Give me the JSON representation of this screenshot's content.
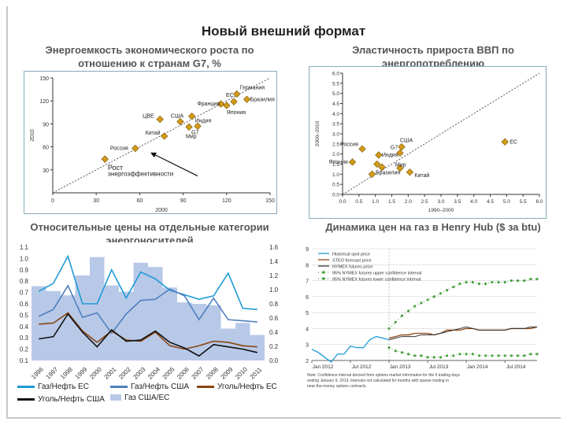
{
  "page": {
    "title": "Новый внешний формат"
  },
  "colors": {
    "accent_blue": "#1e9ad6",
    "brown": "#8b4513",
    "bar_fill": "#b8c9e8",
    "diamond": "#d29c1a",
    "diamond_edge": "#7a5200"
  },
  "chart_data": [
    {
      "id": "energy-intensity",
      "type": "scatter",
      "title": "Энергоемкость экономического роста по отношению к странам G7, %",
      "xlabel": "2000",
      "ylabel": "2010",
      "xlim": [
        0,
        150
      ],
      "ylim": [
        0,
        150
      ],
      "xticks": [
        0,
        30,
        60,
        90,
        120,
        150
      ],
      "yticks": [
        30,
        60,
        90,
        120,
        150
      ],
      "diagonal": true,
      "arrow_label": [
        "Рост",
        "энергоэффективности"
      ],
      "points": [
        {
          "label": "Германия",
          "x": 127,
          "y": 129
        },
        {
          "label": "Бразилия",
          "x": 134,
          "y": 122
        },
        {
          "label": "ЕС",
          "x": 125,
          "y": 119
        },
        {
          "label": "Франция",
          "x": 116,
          "y": 116
        },
        {
          "label": "Япония",
          "x": 120,
          "y": 114
        },
        {
          "label": "Индия",
          "x": 96,
          "y": 100
        },
        {
          "label": "ЦВЕ",
          "x": 74,
          "y": 96
        },
        {
          "label": "США",
          "x": 88,
          "y": 93
        },
        {
          "label": "G7",
          "x": 100,
          "y": 87
        },
        {
          "label": "Мир",
          "x": 94,
          "y": 86
        },
        {
          "label": "Китай",
          "x": 77,
          "y": 74
        },
        {
          "label": "Россия",
          "x": 57,
          "y": 58
        },
        {
          "label": "",
          "x": 36,
          "y": 44
        }
      ]
    },
    {
      "id": "gdp-elasticity",
      "type": "scatter",
      "title": "Эластичность прироста ВВП по энергопотреблению",
      "xlabel": "1990–2000",
      "ylabel": "2000–2010",
      "xlim": [
        0,
        6
      ],
      "ylim": [
        0,
        6
      ],
      "xticks": [
        0.0,
        0.5,
        1.0,
        1.5,
        2.0,
        2.5,
        3.0,
        3.5,
        4.0,
        4.5,
        5.0,
        5.5,
        6.0
      ],
      "yticks": [
        0.0,
        0.5,
        1.0,
        1.5,
        2.0,
        2.5,
        3.0,
        3.5,
        4.0,
        4.5,
        5.0,
        5.5,
        6.0
      ],
      "diagonal": true,
      "points": [
        {
          "label": "ЕС",
          "x": 4.95,
          "y": 2.6
        },
        {
          "label": "США",
          "x": 1.8,
          "y": 2.35
        },
        {
          "label": "Россия",
          "x": 0.6,
          "y": 2.25
        },
        {
          "label": "G7",
          "x": 1.75,
          "y": 2.05
        },
        {
          "label": "Индия",
          "x": 1.1,
          "y": 1.95
        },
        {
          "label": "Япония",
          "x": 0.3,
          "y": 1.6
        },
        {
          "label": "",
          "x": 1.05,
          "y": 1.5
        },
        {
          "label": "Бразилия",
          "x": 1.2,
          "y": 1.35
        },
        {
          "label": "Мир",
          "x": 1.75,
          "y": 1.3
        },
        {
          "label": "Китай",
          "x": 2.05,
          "y": 1.1
        },
        {
          "label": "",
          "x": 0.9,
          "y": 1.0
        }
      ]
    },
    {
      "id": "relative-prices",
      "type": "bar+line",
      "title": "Относительные цены на отдельные категории энергоносителей",
      "categories": [
        "1996",
        "1997",
        "1998",
        "1999",
        "2000",
        "2001",
        "2002",
        "2003",
        "2004",
        "2005",
        "2006",
        "2007",
        "2008",
        "2009",
        "2010",
        "2011"
      ],
      "ylim_left": [
        0.1,
        1.1
      ],
      "yticks_left": [
        "0.1",
        "0.2",
        "0.3",
        "0.4",
        "0.5",
        "0.6",
        "0.7",
        "0.8",
        "0.9",
        "1.0",
        "1.1"
      ],
      "ylim_right": [
        0,
        1.6
      ],
      "yticks_right": [
        "0.0",
        "0.2",
        "0.4",
        "0.6",
        "0.8",
        "1.0",
        "1.2",
        "1.4",
        "1.6"
      ],
      "series": [
        {
          "name": "Газ США/ЕС",
          "axis": "right",
          "kind": "bar",
          "values": [
            1.05,
            0.98,
            0.92,
            1.2,
            1.46,
            1.06,
            0.97,
            1.38,
            1.32,
            1.03,
            0.82,
            0.8,
            0.78,
            0.45,
            0.53,
            0.36
          ]
        },
        {
          "name": "Газ/Нефть ЕС",
          "axis": "left",
          "kind": "line",
          "values": [
            0.71,
            0.78,
            1.02,
            0.6,
            0.6,
            0.9,
            0.65,
            0.88,
            0.82,
            0.72,
            0.68,
            0.64,
            0.67,
            0.87,
            0.56,
            0.55
          ]
        },
        {
          "name": "Газ/Нефть США",
          "axis": "left",
          "kind": "line",
          "values": [
            0.49,
            0.55,
            0.76,
            0.48,
            0.52,
            0.34,
            0.51,
            0.63,
            0.64,
            0.73,
            0.67,
            0.46,
            0.65,
            0.46,
            0.45,
            0.44
          ]
        },
        {
          "name": "Уголь/Нефть ЕС",
          "axis": "left",
          "kind": "line",
          "values": [
            0.42,
            0.43,
            0.52,
            0.36,
            0.26,
            0.36,
            0.28,
            0.27,
            0.35,
            0.23,
            0.2,
            0.23,
            0.27,
            0.26,
            0.23,
            0.22
          ]
        },
        {
          "name": "Уголь/Нефть США",
          "axis": "left",
          "kind": "line",
          "values": [
            0.29,
            0.31,
            0.51,
            0.35,
            0.22,
            0.37,
            0.27,
            0.28,
            0.36,
            0.26,
            0.21,
            0.14,
            0.24,
            0.22,
            0.2,
            0.17
          ]
        }
      ]
    },
    {
      "id": "henry-hub",
      "type": "line",
      "title": "Динамика цен на газ в Henry Hub ($ за btu)",
      "ylim": [
        2,
        9
      ],
      "yticks": [
        "2",
        "3",
        "4",
        "5",
        "6",
        "7",
        "8",
        "9"
      ],
      "xticks": [
        "Jan 2012",
        "Jul 2012",
        "Jan 2013",
        "Jul 2013",
        "Jan 2014",
        "Jul 2014"
      ],
      "legend": [
        "Historical spot price",
        "STEO forecast price",
        "NYMEX futures price",
        "95% NYMEX futures upper confidence interval",
        "95% NYMEX futures lower confidence interval"
      ],
      "footnote": "Note: Confidence interval derived from options market information for the 5 trading days ending January 9, 2013. Intervals not calculated for months with sparse trading in near-the-money options contracts.",
      "series": [
        {
          "name": "Historical spot price",
          "x": [
            0,
            1,
            2,
            3,
            4,
            5,
            6,
            7,
            8,
            9,
            10,
            11,
            12
          ],
          "values": [
            2.7,
            2.5,
            2.2,
            1.9,
            2.4,
            2.4,
            2.9,
            2.8,
            2.8,
            3.3,
            3.5,
            3.4,
            3.3
          ]
        },
        {
          "name": "STEO forecast price",
          "x": [
            12,
            13,
            14,
            15,
            16,
            17,
            18,
            19,
            20,
            21,
            22,
            23,
            24,
            25,
            26,
            27,
            28,
            29,
            30,
            31,
            32,
            33,
            34,
            35
          ],
          "values": [
            3.4,
            3.5,
            3.6,
            3.6,
            3.7,
            3.7,
            3.7,
            3.6,
            3.7,
            3.9,
            3.9,
            3.9,
            4.0,
            4.0,
            3.9,
            3.9,
            3.9,
            3.9,
            3.9,
            4.0,
            4.0,
            4.0,
            4.0,
            4.1
          ]
        },
        {
          "name": "NYMEX futures price",
          "x": [
            12,
            13,
            14,
            15,
            16,
            17,
            18,
            19,
            20,
            21,
            22,
            23,
            24,
            25,
            26,
            27,
            28,
            29,
            30,
            31,
            32,
            33,
            34,
            35
          ],
          "values": [
            3.3,
            3.4,
            3.5,
            3.5,
            3.5,
            3.6,
            3.6,
            3.6,
            3.7,
            3.8,
            3.9,
            4.0,
            4.1,
            4.0,
            3.9,
            3.9,
            3.9,
            3.9,
            3.9,
            4.0,
            4.0,
            4.0,
            4.1,
            4.1
          ]
        },
        {
          "name": "95% NYMEX futures upper confidence interval",
          "x": [
            12,
            13,
            14,
            15,
            16,
            17,
            18,
            19,
            20,
            21,
            22,
            23,
            24,
            25,
            26,
            27,
            28,
            29,
            30,
            31,
            32,
            33,
            34,
            35
          ],
          "values": [
            4.0,
            4.4,
            4.8,
            5.1,
            5.4,
            5.6,
            5.8,
            6.0,
            6.2,
            6.4,
            6.6,
            6.8,
            6.9,
            6.9,
            6.8,
            6.8,
            6.9,
            6.9,
            6.9,
            7.0,
            7.0,
            7.0,
            7.1,
            7.1
          ]
        },
        {
          "name": "95% NYMEX futures lower confidence interval",
          "x": [
            12,
            13,
            14,
            15,
            16,
            17,
            18,
            19,
            20,
            21,
            22,
            23,
            24,
            25,
            26,
            27,
            28,
            29,
            30,
            31,
            32,
            33,
            34,
            35
          ],
          "values": [
            2.8,
            2.6,
            2.5,
            2.4,
            2.3,
            2.3,
            2.2,
            2.2,
            2.2,
            2.3,
            2.3,
            2.4,
            2.4,
            2.4,
            2.3,
            2.3,
            2.3,
            2.3,
            2.3,
            2.3,
            2.3,
            2.3,
            2.4,
            2.4
          ]
        }
      ]
    }
  ]
}
